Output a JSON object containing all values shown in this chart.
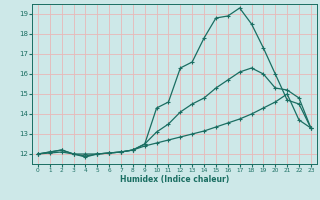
{
  "xlabel": "Humidex (Indice chaleur)",
  "xlim": [
    -0.5,
    23.5
  ],
  "ylim": [
    11.5,
    19.5
  ],
  "yticks": [
    12,
    13,
    14,
    15,
    16,
    17,
    18,
    19
  ],
  "xticks": [
    0,
    1,
    2,
    3,
    4,
    5,
    6,
    7,
    8,
    9,
    10,
    11,
    12,
    13,
    14,
    15,
    16,
    17,
    18,
    19,
    20,
    21,
    22,
    23
  ],
  "bg_color": "#cde8e8",
  "grid_color": "#e8b8b8",
  "line_color": "#1a6e62",
  "line1_x": [
    0,
    1,
    2,
    3,
    4,
    5,
    6,
    7,
    8,
    9,
    10,
    11,
    12,
    13,
    14,
    15,
    16,
    17,
    18,
    19,
    20,
    21,
    22,
    23
  ],
  "line1_y": [
    12.0,
    12.1,
    12.2,
    12.0,
    11.9,
    12.0,
    12.05,
    12.1,
    12.2,
    12.5,
    13.1,
    13.5,
    14.1,
    14.5,
    14.8,
    15.3,
    15.7,
    16.1,
    16.3,
    16.0,
    15.3,
    15.2,
    14.8,
    13.3
  ],
  "line2_x": [
    0,
    1,
    2,
    3,
    4,
    5,
    6,
    7,
    8,
    9,
    10,
    11,
    12,
    13,
    14,
    15,
    16,
    17,
    18,
    19,
    20,
    21,
    22,
    23
  ],
  "line2_y": [
    12.0,
    12.1,
    12.2,
    12.0,
    11.85,
    12.0,
    12.05,
    12.1,
    12.2,
    12.5,
    14.3,
    14.6,
    16.3,
    16.6,
    17.8,
    18.8,
    18.9,
    19.3,
    18.5,
    17.3,
    16.0,
    14.7,
    14.5,
    13.3
  ],
  "line3_x": [
    0,
    1,
    2,
    3,
    4,
    5,
    6,
    7,
    8,
    9,
    10,
    11,
    12,
    13,
    14,
    15,
    16,
    17,
    18,
    19,
    20,
    21,
    22,
    23
  ],
  "line3_y": [
    12.0,
    12.05,
    12.1,
    12.0,
    12.0,
    12.0,
    12.05,
    12.1,
    12.2,
    12.4,
    12.55,
    12.7,
    12.85,
    13.0,
    13.15,
    13.35,
    13.55,
    13.75,
    14.0,
    14.3,
    14.6,
    15.0,
    13.7,
    13.3
  ],
  "markersize": 2.5,
  "linewidth": 0.9
}
